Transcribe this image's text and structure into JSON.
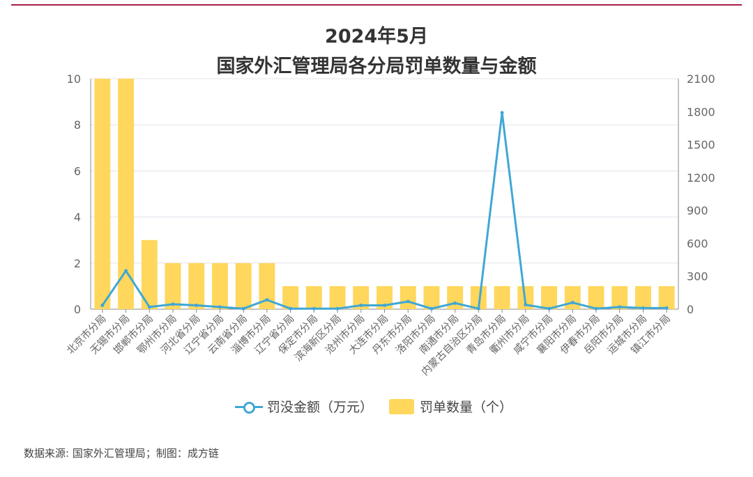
{
  "header": {
    "title_line1": "2024年5月",
    "title_line2": "国家外汇管理局各分局罚单数量与金额"
  },
  "legend": {
    "line_label": "罚没金额（万元）",
    "bar_label": "罚单数量（个）"
  },
  "footer": {
    "source": "数据来源: 国家外汇管理局；制图：成方链"
  },
  "colors": {
    "bar": "#ffd75c",
    "line": "#3fa7d6",
    "accent_rule": "#a81f46"
  },
  "chart_data": {
    "type": "bar",
    "categories": [
      "北京市分局",
      "无锡市分局",
      "邯郸市分局",
      "鄂州市分局",
      "河北省分局",
      "辽宁省分局",
      "云南省分局",
      "淄博市分局",
      "辽宁省分局",
      "保定市分局",
      "滨海新区分局",
      "沧州市分局",
      "大连市分局",
      "丹东市分局",
      "洛阳市分局",
      "南通市分局",
      "内蒙古自治区分局",
      "青岛市分局",
      "衢州市分局",
      "咸宁市分局",
      "襄阳市分局",
      "伊春市分局",
      "岳阳市分局",
      "运城市分局",
      "镇江市分局"
    ],
    "series": [
      {
        "name": "罚单数量（个）",
        "type": "bar",
        "axis": "left",
        "values": [
          10,
          10,
          3,
          2,
          2,
          2,
          2,
          2,
          1,
          1,
          1,
          1,
          1,
          1,
          1,
          1,
          1,
          1,
          1,
          1,
          1,
          1,
          1,
          1,
          1
        ]
      },
      {
        "name": "罚没金额（万元）",
        "type": "line",
        "axis": "right",
        "values": [
          35,
          350,
          20,
          45,
          35,
          20,
          5,
          85,
          5,
          5,
          5,
          35,
          35,
          70,
          5,
          55,
          5,
          1790,
          40,
          5,
          60,
          5,
          20,
          10,
          10
        ]
      }
    ],
    "ylim_left": [
      0,
      10
    ],
    "yticks_left": [
      0,
      2,
      4,
      6,
      8,
      10
    ],
    "ylim_right": [
      0,
      2100
    ],
    "yticks_right": [
      0,
      300,
      600,
      900,
      1200,
      1500,
      1800,
      2100
    ],
    "grid": true,
    "legend_position": "bottom"
  }
}
